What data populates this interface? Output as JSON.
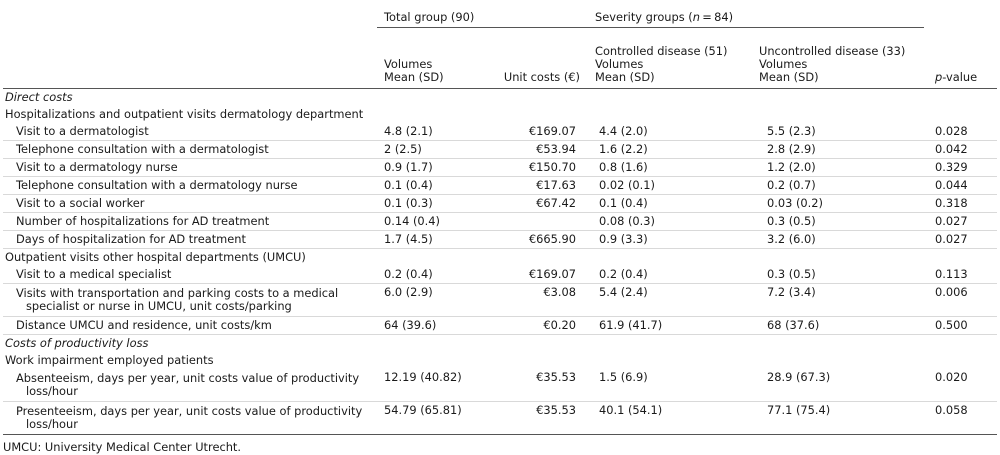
{
  "header": {
    "total_group": "Total group (90)",
    "severity_groups_prefix": "Severity groups (",
    "severity_groups_n": "n",
    "severity_groups_suffix": " = 84)",
    "controlled": "Controlled disease (51)",
    "uncontrolled": "Uncontrolled disease (33)",
    "volumes": "Volumes",
    "mean_sd": "Mean (SD)",
    "unit_costs": "Unit costs (€)",
    "p_letter": "p",
    "p_suffix": "-value"
  },
  "sections": {
    "direct_costs": "Direct costs",
    "hosp_dermatology": "Hospitalizations and outpatient visits dermatology department",
    "outpatient_other": "Outpatient visits other hospital departments (UMCU)",
    "productivity_loss": "Costs of productivity loss",
    "work_impairment": "Work impairment employed patients"
  },
  "rows": [
    {
      "label": "Visit to a dermatologist",
      "total": "4.8 (2.1)",
      "unit": "€169.07",
      "controlled": "4.4 (2.0)",
      "uncontrolled": "5.5 (2.3)",
      "p": "0.028"
    },
    {
      "label": "Telephone consultation with a dermatologist",
      "total": "2 (2.5)",
      "unit": "€53.94",
      "controlled": "1.6 (2.2)",
      "uncontrolled": "2.8 (2.9)",
      "p": "0.042"
    },
    {
      "label": "Visit to a dermatology nurse",
      "total": "0.9 (1.7)",
      "unit": "€150.70",
      "controlled": "0.8 (1.6)",
      "uncontrolled": "1.2 (2.0)",
      "p": "0.329"
    },
    {
      "label": "Telephone consultation with a dermatology nurse",
      "total": "0.1 (0.4)",
      "unit": "€17.63",
      "controlled": "0.02 (0.1)",
      "uncontrolled": "0.2 (0.7)",
      "p": "0.044"
    },
    {
      "label": "Visit to a social worker",
      "total": "0.1 (0.3)",
      "unit": "€67.42",
      "controlled": "0.1 (0.4)",
      "uncontrolled": "0.03 (0.2)",
      "p": "0.318"
    },
    {
      "label": "Number of hospitalizations for AD treatment",
      "total": "0.14 (0.4)",
      "unit": "",
      "controlled": "0.08 (0.3)",
      "uncontrolled": "0.3 (0.5)",
      "p": "0.027"
    },
    {
      "label": "Days of hospitalization for AD treatment",
      "total": "1.7 (4.5)",
      "unit": "€665.90",
      "controlled": "0.9 (3.3)",
      "uncontrolled": "3.2 (6.0)",
      "p": "0.027"
    },
    {
      "label": "Visit to a medical specialist",
      "total": "0.2 (0.4)",
      "unit": "€169.07",
      "controlled": "0.2 (0.4)",
      "uncontrolled": "0.3 (0.5)",
      "p": "0.113"
    },
    {
      "label_line1": "Visits with transportation and parking costs to a medical",
      "label_line2": "specialist or nurse in UMCU, unit costs/parking",
      "total": "6.0 (2.9)",
      "unit": "€3.08",
      "controlled": "5.4 (2.4)",
      "uncontrolled": "7.2 (3.4)",
      "p": "0.006"
    },
    {
      "label": "Distance UMCU and residence, unit costs/km",
      "total": "64 (39.6)",
      "unit": "€0.20",
      "controlled": "61.9 (41.7)",
      "uncontrolled": "68 (37.6)",
      "p": "0.500"
    },
    {
      "label_line1": "Absenteeism, days per year, unit costs value of productivity",
      "label_line2": "loss/hour",
      "total": "12.19 (40.82)",
      "unit": "€35.53",
      "controlled": "1.5 (6.9)",
      "uncontrolled": "28.9 (67.3)",
      "p": "0.020"
    },
    {
      "label_line1": "Presenteeism, days per year, unit costs value of productivity",
      "label_line2": "loss/hour",
      "total": "54.79 (65.81)",
      "unit": "€35.53",
      "controlled": "40.1 (54.1)",
      "uncontrolled": "77.1 (75.4)",
      "p": "0.058"
    }
  ],
  "footnote": "UMCU: University Medical Center Utrecht."
}
